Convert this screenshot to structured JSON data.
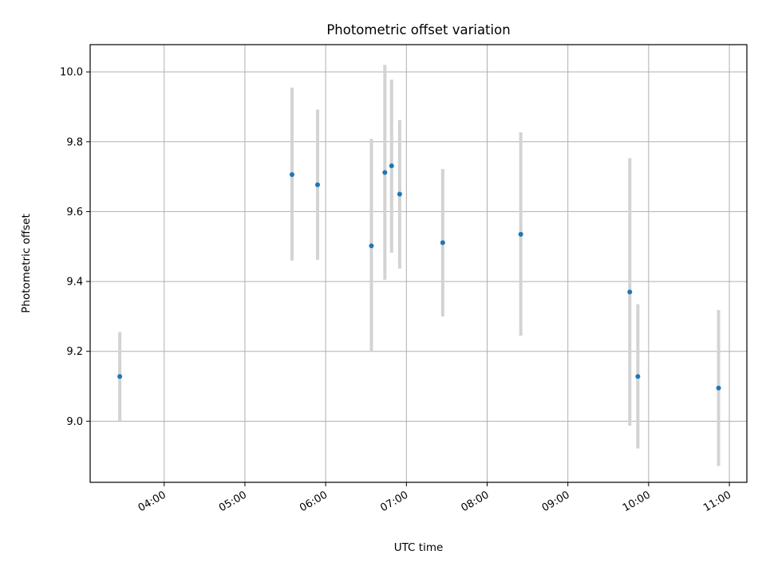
{
  "chart_data": {
    "type": "scatter",
    "title": "Photometric offset variation",
    "xlabel": "UTC time",
    "ylabel": "Photometric offset",
    "x_tick_labels": [
      "04:00",
      "05:00",
      "06:00",
      "07:00",
      "08:00",
      "09:00",
      "10:00",
      "11:00"
    ],
    "y_tick_labels": [
      "9.0",
      "9.2",
      "9.4",
      "9.6",
      "9.8",
      "10.0"
    ],
    "x_ticks": [
      "04:00",
      "05:00",
      "06:00",
      "07:00",
      "08:00",
      "09:00",
      "10:00",
      "11:00"
    ],
    "y_ticks": [
      9.0,
      9.2,
      9.4,
      9.6,
      9.8,
      10.0
    ],
    "xlim": [
      "03:05",
      "11:13"
    ],
    "ylim": [
      8.825,
      10.078
    ],
    "grid": true,
    "points": [
      {
        "x": "03:27",
        "y": 9.128,
        "err_low": 9.0,
        "err_high": 9.255
      },
      {
        "x": "05:35",
        "y": 9.706,
        "err_low": 9.46,
        "err_high": 9.955
      },
      {
        "x": "05:54",
        "y": 9.677,
        "err_low": 9.462,
        "err_high": 9.892
      },
      {
        "x": "06:34",
        "y": 9.502,
        "err_low": 9.2,
        "err_high": 9.808
      },
      {
        "x": "06:44",
        "y": 9.712,
        "err_low": 9.405,
        "err_high": 10.02
      },
      {
        "x": "06:49",
        "y": 9.731,
        "err_low": 9.482,
        "err_high": 9.978
      },
      {
        "x": "06:55",
        "y": 9.65,
        "err_low": 9.437,
        "err_high": 9.862
      },
      {
        "x": "07:27",
        "y": 9.511,
        "err_low": 9.3,
        "err_high": 9.722
      },
      {
        "x": "08:25",
        "y": 9.535,
        "err_low": 9.245,
        "err_high": 9.827
      },
      {
        "x": "09:46",
        "y": 9.37,
        "err_low": 8.987,
        "err_high": 9.753
      },
      {
        "x": "09:52",
        "y": 9.128,
        "err_low": 8.922,
        "err_high": 9.335
      },
      {
        "x": "10:52",
        "y": 9.095,
        "err_low": 8.872,
        "err_high": 9.318
      }
    ],
    "point_color": "#1f77b4",
    "errorbar_color": "#d3d3d3",
    "grid_color": "#b0b0b0"
  }
}
